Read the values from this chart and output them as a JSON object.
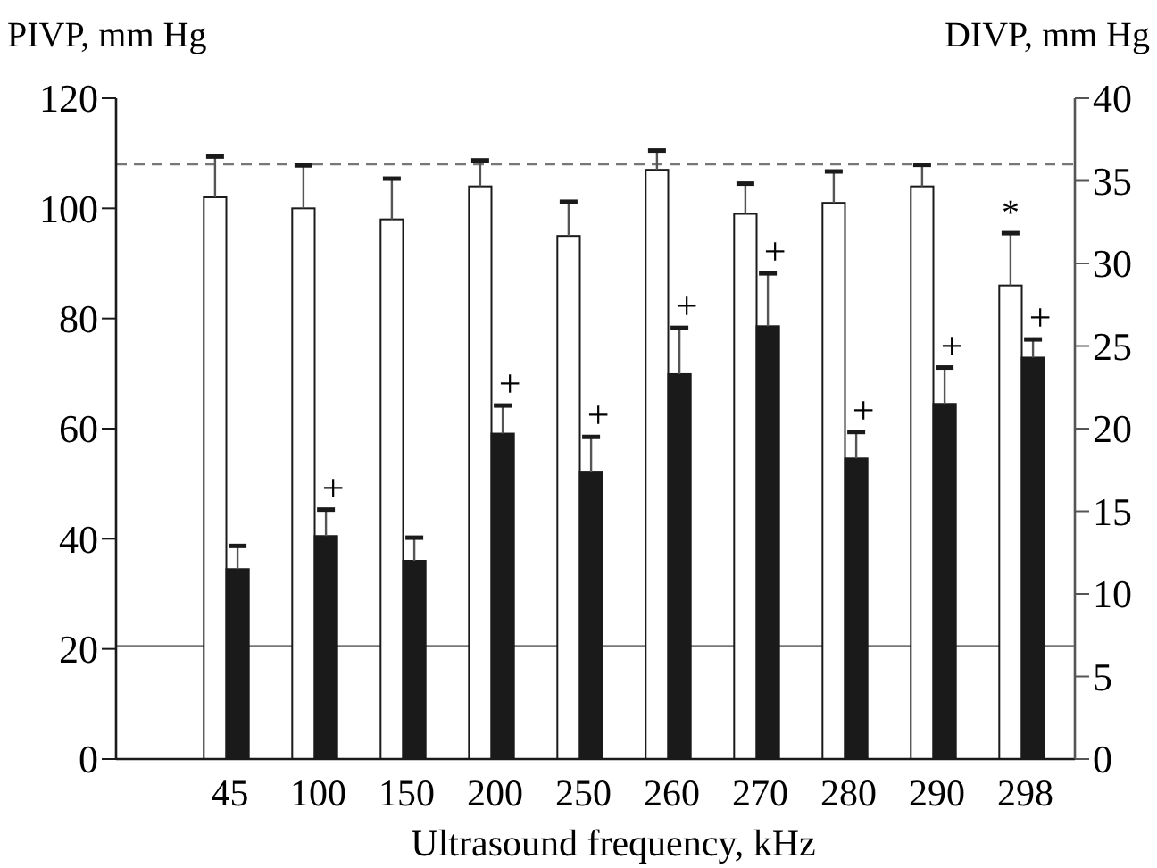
{
  "chart_data": {
    "type": "bar",
    "xlabel": "Ultrasound frequency, kHz",
    "ylabel": "PIVP, mm Hg",
    "y2label": "DIVP, mm Hg",
    "categories": [
      "45",
      "100",
      "150",
      "200",
      "250",
      "260",
      "270",
      "280",
      "290",
      "298"
    ],
    "series": [
      {
        "color": "#ffffff",
        "values": [
          102,
          100,
          98,
          104,
          95,
          107,
          99,
          101,
          104,
          86
        ],
        "errors": [
          [
            102,
            109.4
          ],
          [
            100,
            107.8
          ],
          [
            98,
            105.4
          ],
          [
            104,
            108.7
          ],
          [
            95,
            101.2
          ],
          [
            107,
            110.5
          ],
          [
            99,
            104.5
          ],
          [
            101,
            106.7
          ],
          [
            104,
            107.9
          ],
          [
            86,
            95.5
          ]
        ]
      },
      {
        "color": "#1a1a1a",
        "axis": "y2",
        "values": [
          11.5,
          13.5,
          12,
          19.7,
          17.4,
          23.3,
          26.2,
          18.2,
          21.5,
          24.3
        ],
        "errors": [
          [
            11.5,
            12.9
          ],
          [
            13.5,
            15.1
          ],
          [
            12,
            13.4
          ],
          [
            19.7,
            21.4
          ],
          [
            17.4,
            19.5
          ],
          [
            23.3,
            26.1
          ],
          [
            26.2,
            29.4
          ],
          [
            18.2,
            19.8
          ],
          [
            21.5,
            23.7
          ],
          [
            24.3,
            25.4
          ]
        ]
      }
    ],
    "ylim": [
      0,
      120
    ],
    "yticks": [
      0,
      20,
      40,
      60,
      80,
      100,
      120
    ],
    "y2lim": [
      0,
      40
    ],
    "y2ticks": [
      0,
      5,
      10,
      15,
      20,
      25,
      30,
      35,
      40
    ],
    "ref_lines": [
      {
        "axis": "y",
        "value": 108,
        "color": "#777777",
        "line_style": "dashed"
      },
      {
        "axis": "y",
        "value": 20.5,
        "color": "#777777",
        "line_style": "solid"
      }
    ],
    "annotations": [
      {
        "text": "+",
        "x": "100",
        "y": 45.3
      },
      {
        "text": "+",
        "x": "200",
        "y": 64.2
      },
      {
        "text": "+",
        "x": "250",
        "y": 58.5
      },
      {
        "text": "+",
        "x": "260",
        "y": 78.3
      },
      {
        "text": "+",
        "x": "270",
        "y": 88.2
      },
      {
        "text": "+",
        "x": "280",
        "y": 59.4
      },
      {
        "text": "+",
        "x": "290",
        "y": 71.1
      },
      {
        "text": "+",
        "x": "298",
        "y": 76.2
      },
      {
        "text": "*",
        "x": "298",
        "y": 95.5
      }
    ],
    "grid": false
  }
}
